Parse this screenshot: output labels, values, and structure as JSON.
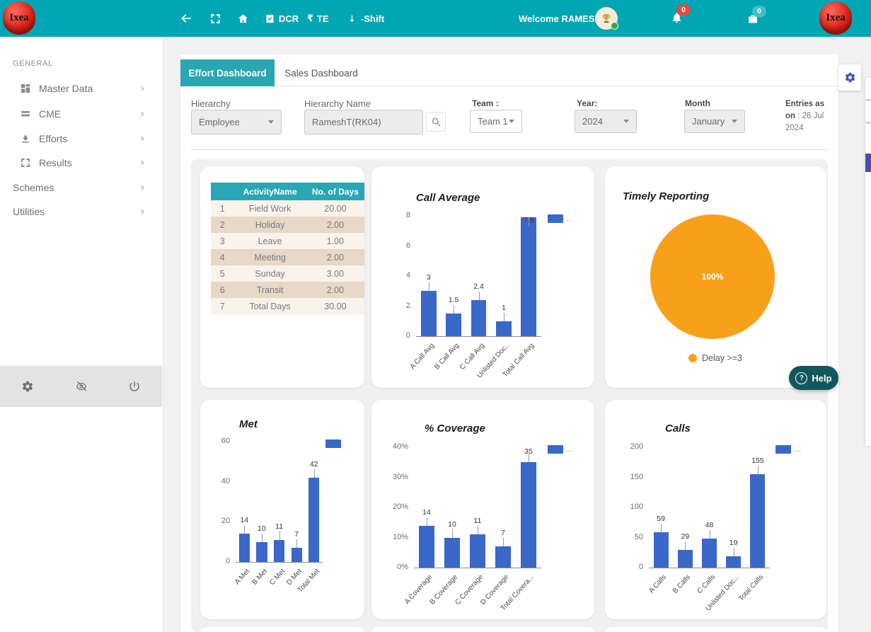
{
  "header": {
    "logo_text": "Ixea",
    "dcr_label": "DCR",
    "te_currency": "₹",
    "te_label": "TE",
    "shift_label": "-Shift",
    "welcome": "Welcome RAMESH",
    "bell_badge": "0",
    "docs_badge": "0"
  },
  "sidebar": {
    "section": "GENERAL",
    "items": [
      {
        "label": "Master Data"
      },
      {
        "label": "CME"
      },
      {
        "label": "Efforts"
      },
      {
        "label": "Results"
      },
      {
        "label": "Schemes"
      },
      {
        "label": "Utilities"
      }
    ]
  },
  "tabs": {
    "effort": "Effort Dashboard",
    "sales": "Sales Dashboard"
  },
  "filters": {
    "hierarchy_label": "Hierarchy",
    "hierarchy_value": "Employee",
    "hierarchy_name_label": "Hierarchy Name",
    "hierarchy_name_value": "RameshT(RK04)",
    "team_label": "Team :",
    "team_value": "Team 1",
    "year_label": "Year:",
    "year_value": "2024",
    "month_label": "Month",
    "month_value": "January",
    "entries_label": "Entries as on",
    "entries_value": ": 26 Jul 2024"
  },
  "activity_table": {
    "headers": {
      "index": "",
      "name": "ActivityName",
      "days": "No. of Days"
    },
    "rows": [
      [
        "1",
        "Field Work",
        "20.00"
      ],
      [
        "2",
        "Holiday",
        "2.00"
      ],
      [
        "3",
        "Leave",
        "1.00"
      ],
      [
        "4",
        "Meeting",
        "2.00"
      ],
      [
        "5",
        "Sunday",
        "3.00"
      ],
      [
        "6",
        "Transit",
        "2.00"
      ],
      [
        "7",
        "Total Days",
        "30.00"
      ]
    ]
  },
  "help": {
    "label": "Help",
    "q": "?"
  },
  "chart_data": [
    {
      "type": "bar",
      "title": "Call Average",
      "categories": [
        "A Call Avg",
        "B Call Avg",
        "C Call Avg",
        "Unlisted Doc..",
        "Total Call Avg"
      ],
      "values": [
        3,
        1.5,
        2.4,
        1,
        7.9
      ],
      "ylim": [
        0,
        8
      ],
      "yticks": [
        0,
        2,
        4,
        6,
        8
      ],
      "tick_suffix": "",
      "legend": "...",
      "grid": false,
      "legend_position": "top-right",
      "bar_color": "#3a68c9"
    },
    {
      "type": "pie",
      "title": "Timely Reporting",
      "slices": [
        {
          "label": "Delay >=3",
          "value": 100,
          "display": "100%",
          "color": "#f9a01b"
        }
      ],
      "legend_position": "bottom"
    },
    {
      "type": "bar",
      "title": "Met",
      "categories": [
        "A Met",
        "B Met",
        "C Met",
        "D Met",
        "Total Met"
      ],
      "values": [
        14,
        10,
        11,
        7,
        42
      ],
      "ylim": [
        0,
        60
      ],
      "yticks": [
        0,
        20,
        40,
        60
      ],
      "tick_suffix": "",
      "legend": "",
      "grid": false,
      "legend_position": "top-right",
      "bar_color": "#3a68c9"
    },
    {
      "type": "bar",
      "title": "% Coverage",
      "categories": [
        "A Coverage",
        "B Coverage",
        "C Coverage",
        "D Coverage",
        "Total Covera..."
      ],
      "values": [
        14,
        10,
        11,
        7,
        35
      ],
      "ylim": [
        0,
        40
      ],
      "yticks": [
        0,
        10,
        20,
        30,
        40
      ],
      "tick_suffix": "%",
      "legend": "...",
      "grid": false,
      "legend_position": "top-right",
      "bar_color": "#3a68c9"
    },
    {
      "type": "bar",
      "title": "Calls",
      "categories": [
        "A Calls",
        "B Calls",
        "C Calls",
        "Unlisted Doc...",
        "Total Calls"
      ],
      "values": [
        59,
        29,
        48,
        19,
        155
      ],
      "ylim": [
        0,
        200
      ],
      "yticks": [
        0,
        50,
        100,
        150,
        200
      ],
      "tick_suffix": "",
      "legend": "...",
      "grid": false,
      "legend_position": "top-right",
      "bar_color": "#3a68c9"
    }
  ],
  "colors": {
    "header_teal": "#00a6b4",
    "tab_active_teal": "#2aa5b2",
    "table_header_teal": "#2aa6b4",
    "bar_blue": "#3a68c9",
    "pie_orange": "#f9a01b",
    "help_teal": "#11575d",
    "badge_red": "#e6493f",
    "badge_cyan": "#3fc0cb",
    "flyout_indigo": "#3f51b5",
    "row_odd": "#faf3ec",
    "row_even": "#e7d8c7"
  }
}
